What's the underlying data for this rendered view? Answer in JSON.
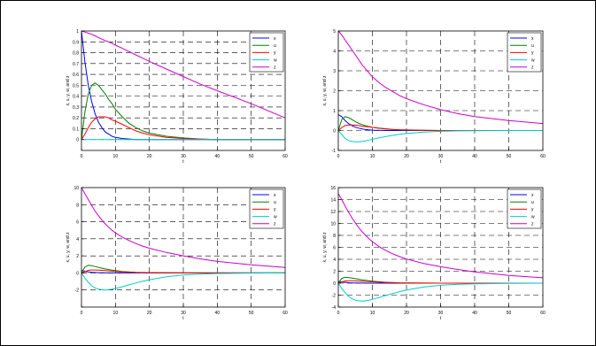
{
  "colors": {
    "x": "#0000ff",
    "u": "#008000",
    "y": "#ff0000",
    "w": "#00cccc",
    "z": "#cc00cc"
  },
  "chart_data": [
    {
      "type": "line",
      "xlabel": "t",
      "ylabel": "x, u, y, w, and z",
      "xlim": [
        0,
        60
      ],
      "ylim": [
        -0.1,
        1
      ],
      "xticks": [
        0,
        10,
        20,
        30,
        40,
        50,
        60
      ],
      "yticks": [
        0,
        0.1,
        0.2,
        0.3,
        0.4,
        0.5,
        0.6,
        0.7,
        0.8,
        0.9,
        1
      ],
      "ytick_labels": [
        "0",
        "0.1",
        "0.2",
        "0.3",
        "0.4",
        "0.5",
        "0.6",
        "0.7",
        "0.8",
        "0.9",
        "1"
      ],
      "grid": true,
      "legend": "top-right",
      "x": [
        0,
        1,
        2,
        3,
        4,
        5,
        6,
        7,
        8,
        9,
        10,
        12,
        14,
        16,
        18,
        20,
        25,
        30,
        35,
        40,
        50,
        60
      ],
      "series": [
        {
          "name": "x",
          "values": [
            1,
            0.72,
            0.5,
            0.35,
            0.24,
            0.16,
            0.11,
            0.07,
            0.05,
            0.03,
            0.02,
            0.01,
            0.005,
            0,
            0,
            0,
            0,
            0,
            0,
            0,
            0,
            0
          ]
        },
        {
          "name": "u",
          "values": [
            0,
            0.25,
            0.42,
            0.5,
            0.52,
            0.5,
            0.46,
            0.42,
            0.37,
            0.33,
            0.28,
            0.21,
            0.15,
            0.11,
            0.08,
            0.06,
            0.03,
            0.015,
            0.005,
            0,
            0,
            0
          ]
        },
        {
          "name": "y",
          "values": [
            0,
            0.05,
            0.11,
            0.16,
            0.19,
            0.21,
            0.21,
            0.21,
            0.2,
            0.18,
            0.17,
            0.14,
            0.11,
            0.08,
            0.06,
            0.045,
            0.02,
            0.01,
            0.005,
            0,
            0,
            0
          ]
        },
        {
          "name": "w",
          "values": [
            0,
            0,
            0,
            0,
            0,
            0,
            0,
            0,
            0,
            0,
            0,
            0,
            0,
            0,
            0,
            0,
            0,
            0,
            0,
            0,
            0,
            0
          ]
        },
        {
          "name": "z",
          "values": [
            1,
            0.99,
            0.98,
            0.97,
            0.955,
            0.94,
            0.925,
            0.91,
            0.9,
            0.885,
            0.87,
            0.84,
            0.81,
            0.78,
            0.75,
            0.72,
            0.65,
            0.58,
            0.51,
            0.45,
            0.33,
            0.2
          ]
        }
      ]
    },
    {
      "type": "line",
      "xlabel": "t",
      "ylabel": "x, u, y, w, and z",
      "xlim": [
        0,
        60
      ],
      "ylim": [
        -1,
        5
      ],
      "xticks": [
        0,
        10,
        20,
        30,
        40,
        50,
        60
      ],
      "yticks": [
        -1,
        0,
        1,
        2,
        3,
        4,
        5
      ],
      "ytick_labels": [
        "-1",
        "0",
        "1",
        "2",
        "3",
        "4",
        "5"
      ],
      "grid": true,
      "legend": "top-right",
      "x": [
        0,
        1,
        2,
        3,
        4,
        5,
        6,
        7,
        8,
        9,
        10,
        12,
        14,
        16,
        18,
        20,
        25,
        30,
        35,
        40,
        50,
        60
      ],
      "series": [
        {
          "name": "x",
          "values": [
            0.8,
            0.7,
            0.5,
            0.35,
            0.25,
            0.17,
            0.12,
            0.08,
            0.05,
            0.03,
            0.02,
            0.01,
            0,
            0,
            0,
            0,
            0,
            0,
            0,
            0,
            0,
            0
          ]
        },
        {
          "name": "u",
          "values": [
            0,
            0.55,
            0.7,
            0.65,
            0.55,
            0.45,
            0.36,
            0.3,
            0.24,
            0.2,
            0.16,
            0.11,
            0.07,
            0.05,
            0.03,
            0.02,
            0.01,
            0,
            0,
            0,
            0,
            0
          ]
        },
        {
          "name": "y",
          "values": [
            0,
            0.15,
            0.25,
            0.28,
            0.28,
            0.27,
            0.25,
            0.22,
            0.2,
            0.18,
            0.16,
            0.12,
            0.09,
            0.06,
            0.04,
            0.03,
            0.01,
            0,
            0,
            0,
            0,
            0
          ]
        },
        {
          "name": "w",
          "values": [
            0,
            -0.2,
            -0.4,
            -0.5,
            -0.55,
            -0.57,
            -0.57,
            -0.55,
            -0.52,
            -0.48,
            -0.44,
            -0.37,
            -0.3,
            -0.24,
            -0.19,
            -0.15,
            -0.08,
            -0.04,
            -0.02,
            -0.01,
            0,
            0
          ]
        },
        {
          "name": "z",
          "values": [
            5,
            4.8,
            4.55,
            4.3,
            4.05,
            3.8,
            3.55,
            3.3,
            3.1,
            2.9,
            2.7,
            2.4,
            2.15,
            1.95,
            1.75,
            1.6,
            1.3,
            1.05,
            0.85,
            0.7,
            0.5,
            0.35
          ]
        }
      ]
    },
    {
      "type": "line",
      "xlabel": "t",
      "ylabel": "x, u, y, w, and z",
      "xlim": [
        0,
        60
      ],
      "ylim": [
        -4,
        10
      ],
      "xticks": [
        0,
        10,
        20,
        30,
        40,
        50,
        60
      ],
      "yticks": [
        -4,
        -2,
        0,
        2,
        4,
        6,
        8,
        10
      ],
      "ytick_labels": [
        "",
        "-2",
        "0",
        "2",
        "4",
        "6",
        "8",
        "10"
      ],
      "grid": true,
      "legend": "top-right",
      "x": [
        0,
        1,
        2,
        3,
        4,
        5,
        6,
        7,
        8,
        9,
        10,
        12,
        14,
        16,
        18,
        20,
        25,
        30,
        35,
        40,
        50,
        60
      ],
      "series": [
        {
          "name": "x",
          "values": [
            0.3,
            0.2,
            0.13,
            0.08,
            0.05,
            0.03,
            0.02,
            0.01,
            0,
            0,
            0,
            0,
            0,
            0,
            0,
            0,
            0,
            0,
            0,
            0,
            0,
            0
          ]
        },
        {
          "name": "u",
          "values": [
            0,
            0.7,
            0.9,
            0.85,
            0.75,
            0.65,
            0.55,
            0.47,
            0.4,
            0.33,
            0.27,
            0.18,
            0.12,
            0.08,
            0.05,
            0.03,
            0.01,
            0,
            0,
            0,
            0,
            0
          ]
        },
        {
          "name": "y",
          "values": [
            0,
            0.15,
            0.3,
            0.35,
            0.35,
            0.33,
            0.3,
            0.27,
            0.24,
            0.21,
            0.18,
            0.13,
            0.09,
            0.06,
            0.04,
            0.03,
            0.01,
            0,
            0,
            0,
            0,
            0
          ]
        },
        {
          "name": "w",
          "values": [
            0,
            -0.6,
            -1.1,
            -1.5,
            -1.75,
            -1.9,
            -1.98,
            -2.0,
            -1.97,
            -1.9,
            -1.82,
            -1.62,
            -1.4,
            -1.18,
            -0.98,
            -0.8,
            -0.45,
            -0.25,
            -0.13,
            -0.07,
            -0.02,
            0
          ]
        },
        {
          "name": "z",
          "values": [
            10,
            9.3,
            8.6,
            7.9,
            7.25,
            6.7,
            6.2,
            5.75,
            5.35,
            5.0,
            4.7,
            4.2,
            3.8,
            3.45,
            3.15,
            2.9,
            2.4,
            2.0,
            1.65,
            1.35,
            0.95,
            0.65
          ]
        }
      ]
    },
    {
      "type": "line",
      "xlabel": "t",
      "ylabel": "x, u, y, w, and z",
      "xlim": [
        0,
        60
      ],
      "ylim": [
        -4,
        16
      ],
      "xticks": [
        0,
        10,
        20,
        30,
        40,
        50,
        60
      ],
      "yticks": [
        -4,
        -2,
        0,
        2,
        4,
        6,
        8,
        10,
        12,
        14,
        16
      ],
      "ytick_labels": [
        "-4",
        "-2",
        "0",
        "2",
        "4",
        "6",
        "8",
        "10",
        "12",
        "14",
        "16"
      ],
      "grid": true,
      "legend": "top-right",
      "x": [
        0,
        1,
        2,
        3,
        4,
        5,
        6,
        7,
        8,
        9,
        10,
        12,
        14,
        16,
        18,
        20,
        25,
        30,
        35,
        40,
        50,
        60
      ],
      "series": [
        {
          "name": "x",
          "values": [
            0.3,
            0.2,
            0.13,
            0.08,
            0.05,
            0.03,
            0.02,
            0.01,
            0,
            0,
            0,
            0,
            0,
            0,
            0,
            0,
            0,
            0,
            0,
            0,
            0,
            0
          ]
        },
        {
          "name": "u",
          "values": [
            0,
            0.8,
            1.0,
            0.95,
            0.85,
            0.75,
            0.65,
            0.55,
            0.47,
            0.4,
            0.33,
            0.23,
            0.15,
            0.1,
            0.06,
            0.04,
            0.01,
            0,
            0,
            0,
            0,
            0
          ]
        },
        {
          "name": "y",
          "values": [
            0,
            0.2,
            0.35,
            0.4,
            0.4,
            0.38,
            0.35,
            0.32,
            0.28,
            0.25,
            0.22,
            0.16,
            0.11,
            0.08,
            0.05,
            0.03,
            0.01,
            0,
            0,
            0,
            0,
            0
          ]
        },
        {
          "name": "w",
          "values": [
            0,
            -0.9,
            -1.6,
            -2.2,
            -2.6,
            -2.85,
            -2.97,
            -3.0,
            -2.95,
            -2.85,
            -2.7,
            -2.4,
            -2.05,
            -1.72,
            -1.42,
            -1.15,
            -0.65,
            -0.35,
            -0.18,
            -0.1,
            -0.03,
            0
          ]
        },
        {
          "name": "z",
          "values": [
            15,
            14.0,
            12.9,
            11.9,
            10.95,
            10.1,
            9.3,
            8.6,
            8.0,
            7.45,
            6.95,
            6.1,
            5.45,
            4.9,
            4.45,
            4.05,
            3.3,
            2.75,
            2.3,
            1.9,
            1.3,
            0.9
          ]
        }
      ]
    }
  ]
}
